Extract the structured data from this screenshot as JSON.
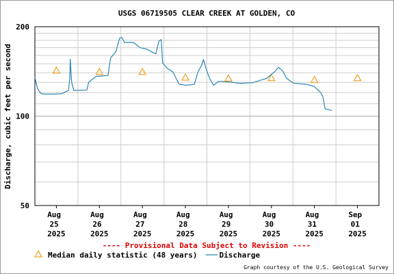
{
  "chart_data": {
    "type": "line",
    "title": "USGS 06719505 CLEAR CREEK AT GOLDEN, CO",
    "y_label": "Discharge, cubic feet per second",
    "notice": "---- Provisional Data Subject to Revision ----",
    "credit": "Graph courtesy of the U.S. Geological Survey",
    "log_y": true,
    "grid": true,
    "xlim": [
      "2025-08-25T00:00",
      "2025-09-02T00:00"
    ],
    "xticks": [
      {
        "value": "2025-08-25T12:00",
        "label": "Aug 25 2025"
      },
      {
        "value": "2025-08-26T12:00",
        "label": "Aug 26 2025"
      },
      {
        "value": "2025-08-27T12:00",
        "label": "Aug 27 2025"
      },
      {
        "value": "2025-08-28T12:00",
        "label": "Aug 28 2025"
      },
      {
        "value": "2025-08-29T12:00",
        "label": "Aug 29 2025"
      },
      {
        "value": "2025-08-30T12:00",
        "label": "Aug 30 2025"
      },
      {
        "value": "2025-08-31T12:00",
        "label": "Aug 31 2025"
      },
      {
        "value": "2025-09-01T12:00",
        "label": "Sep 01 2025"
      }
    ],
    "xgrid": [
      "2025-08-26T00:00",
      "2025-08-27T00:00",
      "2025-08-28T00:00",
      "2025-08-29T00:00",
      "2025-08-30T00:00",
      "2025-08-31T00:00",
      "2025-09-01T00:00"
    ],
    "ylim": [
      50,
      200
    ],
    "yticks": [
      50,
      100,
      200
    ],
    "yminor": [
      60,
      70,
      80,
      90,
      110,
      120,
      130,
      140,
      150,
      160,
      170,
      180,
      190
    ],
    "series": [
      {
        "name": "Median daily statistic (48 years)",
        "color": "#f0a020",
        "marker": "triangle",
        "x": [
          "2025-08-25T12:00",
          "2025-08-26T12:00",
          "2025-08-27T12:00",
          "2025-08-28T12:00",
          "2025-08-29T12:00",
          "2025-08-30T12:00",
          "2025-08-31T12:00",
          "2025-09-01T12:00"
        ],
        "values": [
          142.5,
          141,
          141,
          135,
          134,
          134.5,
          132.5,
          134.5
        ]
      },
      {
        "name": "Discharge",
        "color": "#2a86b4",
        "marker": "line",
        "x": [
          "2025-08-25T00:00",
          "2025-08-25T01:30",
          "2025-08-25T03:30",
          "2025-08-25T05:15",
          "2025-08-25T11:00",
          "2025-08-25T15:00",
          "2025-08-25T18:45",
          "2025-08-25T19:30",
          "2025-08-25T19:45",
          "2025-08-25T20:30",
          "2025-08-25T21:45",
          "2025-08-26T05:00",
          "2025-08-26T06:00",
          "2025-08-26T10:00",
          "2025-08-26T16:45",
          "2025-08-26T18:15",
          "2025-08-26T21:15",
          "2025-08-26T23:15",
          "2025-08-27T00:30",
          "2025-08-27T02:00",
          "2025-08-27T07:00",
          "2025-08-27T10:45",
          "2025-08-27T14:30",
          "2025-08-27T19:30",
          "2025-08-27T21:15",
          "2025-08-27T22:30",
          "2025-08-27T23:15",
          "2025-08-28T02:00",
          "2025-08-28T05:00",
          "2025-08-28T06:30",
          "2025-08-28T08:30",
          "2025-08-28T12:15",
          "2025-08-28T17:00",
          "2025-08-28T19:00",
          "2025-08-28T21:00",
          "2025-08-28T22:00",
          "2025-08-28T23:30",
          "2025-08-29T01:30",
          "2025-08-29T03:45",
          "2025-08-29T06:30",
          "2025-08-29T14:00",
          "2025-08-29T18:00",
          "2025-08-30T01:30",
          "2025-08-30T09:15",
          "2025-08-30T13:45",
          "2025-08-30T16:00",
          "2025-08-30T18:15",
          "2025-08-30T20:30",
          "2025-08-31T00:30",
          "2025-08-31T07:15",
          "2025-08-31T11:45",
          "2025-08-31T15:30",
          "2025-08-31T16:45",
          "2025-08-31T18:00",
          "2025-08-31T21:45"
        ],
        "values": [
          135,
          123.7,
          119,
          118.6,
          118.6,
          119,
          122,
          134,
          156,
          130,
          122,
          122.5,
          130,
          136,
          137,
          157,
          165,
          183,
          184,
          177,
          177,
          170,
          168,
          162,
          179,
          181,
          151,
          144.5,
          141,
          135,
          128,
          127,
          128,
          141,
          148,
          155,
          144.5,
          134,
          127,
          131,
          130,
          129,
          129.5,
          134,
          141,
          146,
          142,
          134,
          129,
          128,
          126,
          120,
          116,
          105.7,
          104.5
        ]
      }
    ]
  }
}
